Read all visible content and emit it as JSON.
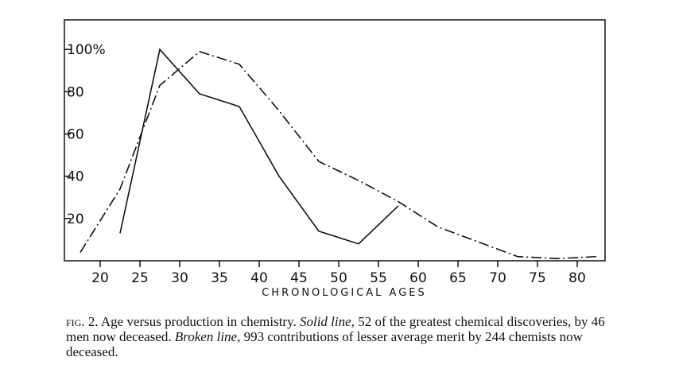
{
  "chart_data": {
    "type": "line",
    "xlabel": "CHRONOLOGICAL AGES",
    "ylabel": "",
    "xlim": [
      15.5,
      83.5
    ],
    "ylim": [
      0,
      114
    ],
    "grid": false,
    "x_ticks": [
      "20",
      "25",
      "30",
      "35",
      "40",
      "45",
      "50",
      "55",
      "60",
      "65",
      "70",
      "75",
      "80"
    ],
    "y_ticks": [
      "20",
      "40",
      "60",
      "80",
      "100%"
    ],
    "series": [
      {
        "style": "solid",
        "x": [
          22.5,
          27.5,
          32.5,
          37.5,
          42.5,
          47.5,
          52.5,
          57.5
        ],
        "y": [
          13,
          100,
          79,
          73,
          40,
          14,
          8,
          26
        ]
      },
      {
        "style": "dash-dot",
        "x": [
          17.5,
          22.5,
          27.5,
          32.5,
          37.5,
          42.5,
          47.5,
          52.5,
          57.5,
          62.5,
          67.5,
          72.5,
          77.5,
          82.5
        ],
        "y": [
          4,
          34,
          83,
          99,
          93,
          71,
          47,
          38,
          28,
          16,
          9,
          2,
          1,
          2
        ]
      }
    ]
  },
  "caption": {
    "fig_label": "fig. 2.",
    "text_1": " Age versus production in chemistry. ",
    "solid_label": "Solid line",
    "text_2": ", 52 of the greatest chemical discoveries, by 46 men now deceased. ",
    "broken_label": "Broken line",
    "text_3": ", 993 contributions of lesser average merit by 244 chemists now deceased."
  }
}
